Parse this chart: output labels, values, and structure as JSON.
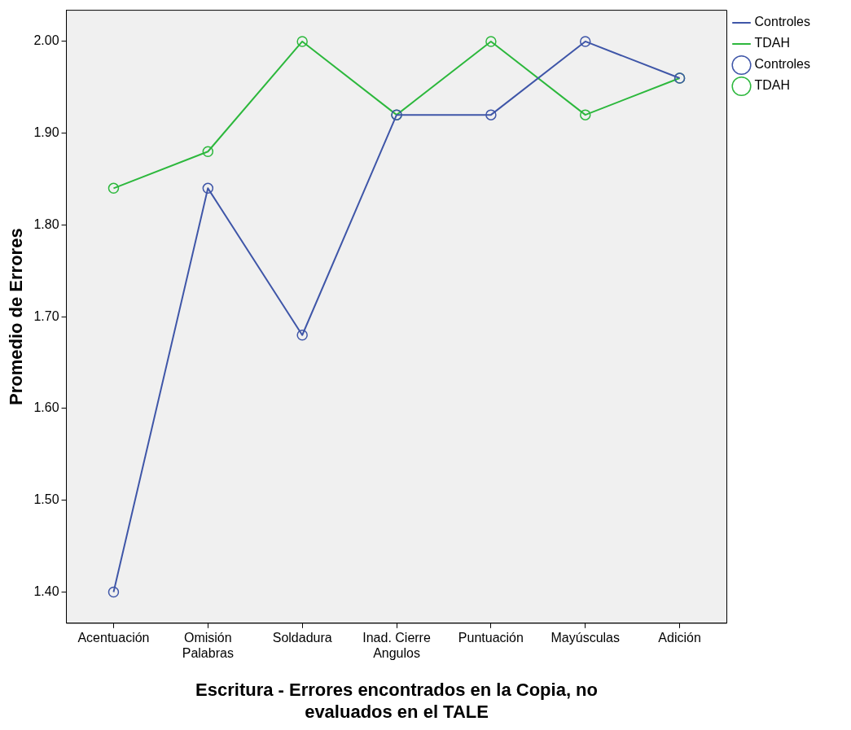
{
  "chart_data": {
    "type": "line",
    "xlabel": "Escritura - Errores encontrados en la Copia, no\nevaluados en el TALE",
    "ylabel": "Promedio de Errores",
    "categories": [
      "Acentuación",
      "Omisión\nPalabras",
      "Soldadura",
      "Inad. Cierre\nAngulos",
      "Puntuación",
      "Mayúsculas",
      "Adición"
    ],
    "series": [
      {
        "name": "Controles",
        "color": "#3f56a8",
        "values": [
          1.4,
          1.84,
          1.68,
          1.92,
          1.92,
          2.0,
          1.96
        ]
      },
      {
        "name": "TDAH",
        "color": "#2db83d",
        "values": [
          1.84,
          1.88,
          2.0,
          1.92,
          2.0,
          1.92,
          1.96
        ]
      }
    ],
    "ylim": [
      1.366,
      2.034
    ],
    "yticks": [
      {
        "value": 1.4,
        "label": "1.40"
      },
      {
        "value": 1.5,
        "label": "1.50"
      },
      {
        "value": 1.6,
        "label": "1.60"
      },
      {
        "value": 1.7,
        "label": "1.70"
      },
      {
        "value": 1.8,
        "label": "1.80"
      },
      {
        "value": 1.9,
        "label": "1.90"
      },
      {
        "value": 2.0,
        "label": "2.00"
      }
    ],
    "grid": false,
    "legend": "top right",
    "marker": "circle",
    "line_style": "solid"
  }
}
